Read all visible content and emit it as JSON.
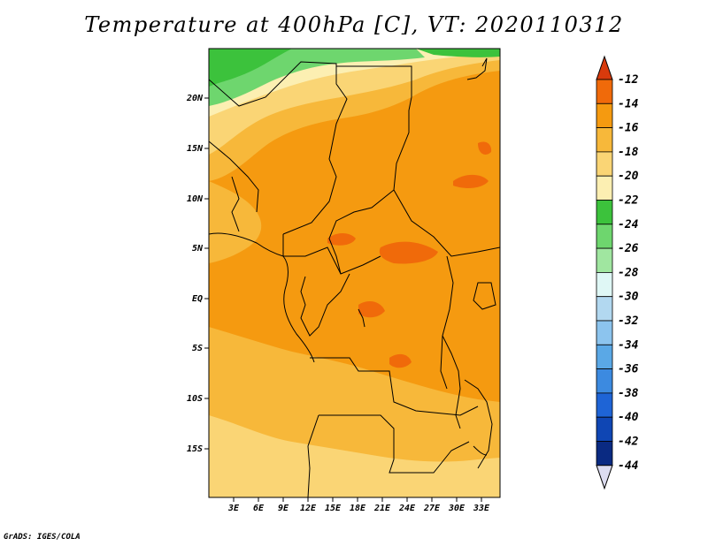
{
  "title": "Temperature at 400hPa [C], VT: 2020110312",
  "credit": "GrADS: IGES/COLA",
  "map": {
    "lat_ticks": [
      "20N",
      "15N",
      "10N",
      "5N",
      "EQ",
      "5S",
      "10S",
      "15S"
    ],
    "lon_ticks": [
      "3E",
      "6E",
      "9E",
      "12E",
      "15E",
      "18E",
      "21E",
      "24E",
      "27E",
      "30E",
      "33E"
    ]
  },
  "colorbar": {
    "labels": [
      "-12",
      "-14",
      "-16",
      "-18",
      "-20",
      "-22",
      "-24",
      "-26",
      "-28",
      "-30",
      "-32",
      "-34",
      "-36",
      "-38",
      "-40",
      "-42",
      "-44"
    ],
    "colors": [
      "#d83a0c",
      "#f06a0a",
      "#f59a10",
      "#f7b83a",
      "#fad575",
      "#fcefb2",
      "#3cc23c",
      "#6ed66e",
      "#a0e6a0",
      "#dff7f5",
      "#b2d8f0",
      "#8cc4ee",
      "#5aa8e6",
      "#3c8ae0",
      "#1e64d6",
      "#0f46b4",
      "#0a2a82",
      "#dcdcf0"
    ]
  }
}
